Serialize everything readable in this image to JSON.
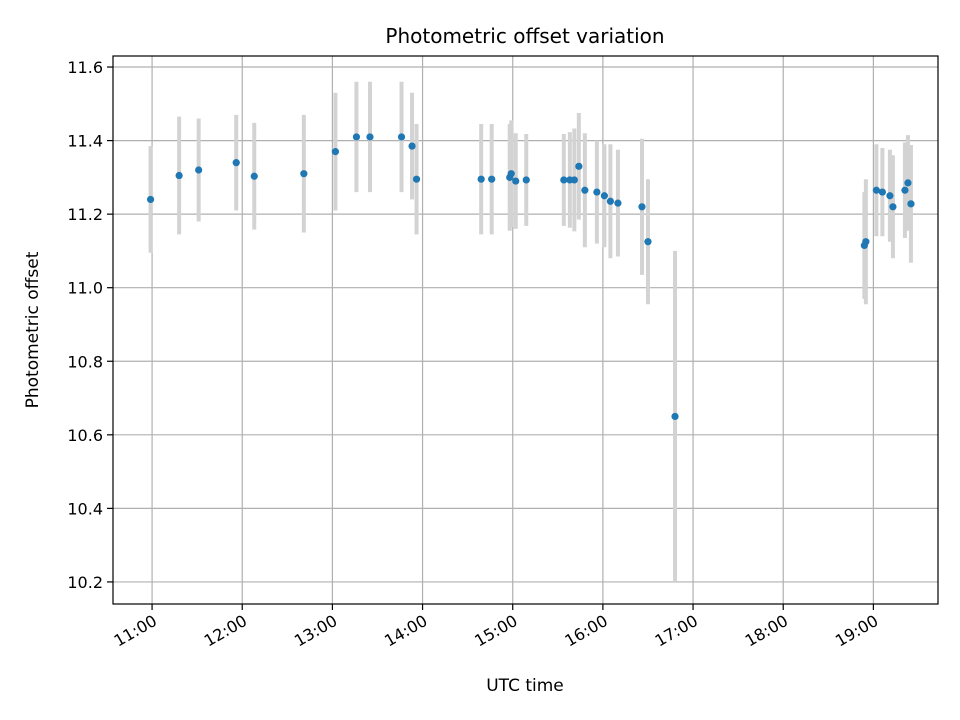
{
  "chart_data": {
    "type": "scatter",
    "title": "Photometric offset variation",
    "xlabel": "UTC time",
    "ylabel": "Photometric offset",
    "x_type": "time",
    "xlim": [
      "10:34",
      "19:43"
    ],
    "ylim": [
      10.14,
      11.63
    ],
    "x_ticks": [
      "11:00",
      "12:00",
      "13:00",
      "14:00",
      "15:00",
      "16:00",
      "17:00",
      "18:00",
      "19:00"
    ],
    "y_ticks": [
      "10.2",
      "10.4",
      "10.6",
      "10.8",
      "11.0",
      "11.2",
      "11.4",
      "11.6"
    ],
    "grid": true,
    "point_color": "#1f77b4",
    "errorbar_color": "#d3d3d3",
    "points": [
      {
        "time": "10:59",
        "y": 11.24,
        "err": 0.145
      },
      {
        "time": "11:18",
        "y": 11.305,
        "err": 0.16
      },
      {
        "time": "11:31",
        "y": 11.32,
        "err": 0.14
      },
      {
        "time": "11:56",
        "y": 11.34,
        "err": 0.13
      },
      {
        "time": "12:08",
        "y": 11.303,
        "err": 0.145
      },
      {
        "time": "12:41",
        "y": 11.31,
        "err": 0.16
      },
      {
        "time": "13:02",
        "y": 11.37,
        "err": 0.16
      },
      {
        "time": "13:16",
        "y": 11.41,
        "err": 0.15
      },
      {
        "time": "13:25",
        "y": 11.41,
        "err": 0.15
      },
      {
        "time": "13:46",
        "y": 11.41,
        "err": 0.15
      },
      {
        "time": "13:53",
        "y": 11.385,
        "err": 0.145
      },
      {
        "time": "13:56",
        "y": 11.295,
        "err": 0.15
      },
      {
        "time": "14:39",
        "y": 11.295,
        "err": 0.15
      },
      {
        "time": "14:46",
        "y": 11.295,
        "err": 0.15
      },
      {
        "time": "14:58",
        "y": 11.3,
        "err": 0.145
      },
      {
        "time": "14:59",
        "y": 11.31,
        "err": 0.145
      },
      {
        "time": "15:02",
        "y": 11.29,
        "err": 0.13
      },
      {
        "time": "15:09",
        "y": 11.293,
        "err": 0.125
      },
      {
        "time": "15:34",
        "y": 11.293,
        "err": 0.125
      },
      {
        "time": "15:38",
        "y": 11.293,
        "err": 0.13
      },
      {
        "time": "15:41",
        "y": 11.293,
        "err": 0.14
      },
      {
        "time": "15:44",
        "y": 11.33,
        "err": 0.145
      },
      {
        "time": "15:48",
        "y": 11.265,
        "err": 0.155
      },
      {
        "time": "15:56",
        "y": 11.26,
        "err": 0.14
      },
      {
        "time": "16:01",
        "y": 11.25,
        "err": 0.14
      },
      {
        "time": "16:05",
        "y": 11.235,
        "err": 0.155
      },
      {
        "time": "16:10",
        "y": 11.23,
        "err": 0.145
      },
      {
        "time": "16:26",
        "y": 11.22,
        "err": 0.185
      },
      {
        "time": "16:30",
        "y": 11.125,
        "err": 0.17
      },
      {
        "time": "16:48",
        "y": 10.65,
        "err": 0.45
      },
      {
        "time": "18:54",
        "y": 11.115,
        "err": 0.145
      },
      {
        "time": "18:55",
        "y": 11.125,
        "err": 0.17
      },
      {
        "time": "19:02",
        "y": 11.265,
        "err": 0.125
      },
      {
        "time": "19:06",
        "y": 11.26,
        "err": 0.12
      },
      {
        "time": "19:11",
        "y": 11.25,
        "err": 0.125
      },
      {
        "time": "19:13",
        "y": 11.22,
        "err": 0.14
      },
      {
        "time": "19:21",
        "y": 11.265,
        "err": 0.13
      },
      {
        "time": "19:23",
        "y": 11.285,
        "err": 0.13
      },
      {
        "time": "19:25",
        "y": 11.228,
        "err": 0.16
      }
    ]
  }
}
